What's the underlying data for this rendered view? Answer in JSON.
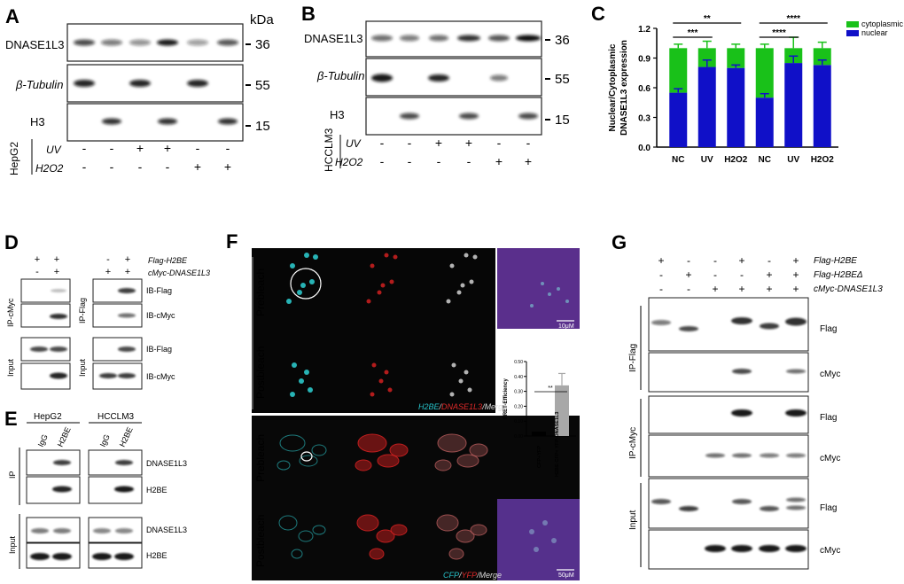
{
  "panels": {
    "A": {
      "letter": "A",
      "kda": "kDa",
      "rows": [
        "DNASE1L3",
        "β-Tubulin",
        "H3"
      ],
      "mw": [
        "36",
        "55",
        "15"
      ],
      "cell": "HepG2",
      "treat": [
        "UV",
        "H2O2"
      ],
      "uv_signs": [
        "-",
        "-",
        "+",
        "+",
        "-",
        "-"
      ],
      "h2o2_signs": [
        "-",
        "-",
        "-",
        "-",
        "+",
        "+"
      ]
    },
    "B": {
      "letter": "B",
      "rows": [
        "DNASE1L3",
        "β-Tubulin",
        "H3"
      ],
      "mw": [
        "36",
        "55",
        "15"
      ],
      "cell": "HCCLM3",
      "treat": [
        "UV",
        "H2O2"
      ],
      "uv_signs": [
        "-",
        "-",
        "+",
        "+",
        "-",
        "-"
      ],
      "h2o2_signs": [
        "-",
        "-",
        "-",
        "-",
        "+",
        "+"
      ]
    },
    "C": {
      "letter": "C"
    },
    "D": {
      "letter": "D",
      "top_labels": [
        "Flag-H2BE",
        "cMyc-DNASE1L3"
      ],
      "left_flag_signs": [
        "+",
        "+"
      ],
      "left_myc_signs": [
        "-",
        "+"
      ],
      "right_flag_signs": [
        "-",
        "+"
      ],
      "right_myc_signs": [
        "+",
        "+"
      ],
      "left_groups": [
        "IP-cMyc",
        "Input"
      ],
      "right_groups": [
        "IP-Flag",
        "Input"
      ],
      "blot_labels": [
        "IB-Flag",
        "IB-cMyc",
        "IB-Flag",
        "IB-cMyc"
      ]
    },
    "E": {
      "letter": "E",
      "cells": [
        "HepG2",
        "HCCLM3"
      ],
      "lanes": [
        "IgG",
        "H2BE"
      ],
      "groups": [
        "IP",
        "Input"
      ],
      "blot_labels": [
        "DNASE1L3",
        "H2BE",
        "DNASE1L3",
        "H2BE"
      ]
    },
    "F": {
      "letter": "F",
      "rows": [
        "Prebleach",
        "Postbleach",
        "Prebleach",
        "Postbleach"
      ],
      "caption_top": [
        "H2BE",
        "/",
        "DNASE1L3",
        "/Merge"
      ],
      "caption_bottom": [
        "CFP",
        "/",
        "YFP",
        "/Merge"
      ],
      "scale_top": "10μM",
      "scale_bottom": "50μM",
      "bar_ylabel": "FRET-Efficiency",
      "bar_ticks": [
        "0.00",
        "0.10",
        "0.20",
        "0.30",
        "0.40",
        "0.50"
      ],
      "bar_categories": [
        "CFP+YFP",
        "H2BE-CFP+ YFP-DNASE1L3"
      ],
      "bar_values": [
        0.03,
        0.34
      ],
      "bar_err": [
        0,
        0.08
      ],
      "sig": "**"
    },
    "G": {
      "letter": "G",
      "top_labels": [
        "Flag-H2BE",
        "Flag-H2BEΔ",
        "cMyc-DNASE1L3"
      ],
      "row1": [
        "+",
        "-",
        "-",
        "+",
        "-",
        "+"
      ],
      "row2": [
        "-",
        "+",
        "-",
        "-",
        "+",
        "+"
      ],
      "row3": [
        "-",
        "-",
        "+",
        "+",
        "+",
        "+"
      ],
      "groups": [
        "IP-Flag",
        "IP-cMyc",
        "Input"
      ],
      "blot_labels": [
        "Flag",
        "cMyc",
        "Flag",
        "cMyc",
        "Flag",
        "cMyc"
      ]
    }
  },
  "chart_data": {
    "type": "bar",
    "stacked": true,
    "categories": [
      "NC",
      "UV",
      "H2O2",
      "NC",
      "UV",
      "H2O2"
    ],
    "series": [
      {
        "name": "nuclear",
        "values": [
          0.55,
          0.81,
          0.8,
          0.5,
          0.85,
          0.83
        ],
        "err": [
          0.04,
          0.07,
          0.03,
          0.04,
          0.07,
          0.05
        ],
        "color": "#1010c8"
      },
      {
        "name": "cytoplasmic",
        "values": [
          0.45,
          0.19,
          0.2,
          0.5,
          0.15,
          0.17
        ],
        "err": [
          0.04,
          0.07,
          0.04,
          0.04,
          0.11,
          0.06
        ],
        "color": "#19c119"
      }
    ],
    "ylabel": "Nuclear/Cytoplasmic DNASE1L3 expression",
    "ylabel_lines": [
      "Nuclear/Cytoplasmic",
      "DNASE1L3 expression"
    ],
    "ylim": [
      0,
      1.2
    ],
    "yticks": [
      "0.0",
      "0.3",
      "0.6",
      "0.9",
      "1.2"
    ],
    "legend_position": "top-right",
    "significance": [
      {
        "from": 0,
        "to": 1,
        "label": "***"
      },
      {
        "from": 0,
        "to": 2,
        "label": "**"
      },
      {
        "from": 3,
        "to": 4,
        "label": "****"
      },
      {
        "from": 3,
        "to": 5,
        "label": "****"
      }
    ]
  }
}
